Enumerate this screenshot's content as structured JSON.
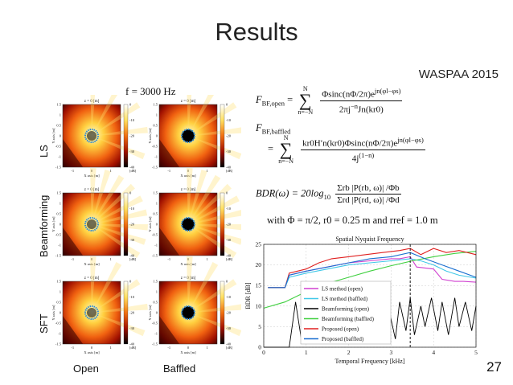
{
  "slide": {
    "title": "Results",
    "venue": "WASPAA 2015",
    "page_number": "27",
    "frequency_label": "f = 3000 Hz"
  },
  "figure_grid": {
    "row_labels": [
      "LS",
      "Beamforming",
      "SFT"
    ],
    "column_labels": [
      "Open",
      "Baffled"
    ],
    "panel_title": "z = 0 [m]",
    "x_label": "X axis [m]",
    "y_label": "Y axis [m]",
    "colorbar_unit": "[dB]",
    "x_ticks": [
      "-1",
      "0",
      "1"
    ],
    "y_ticks": [
      "1.5",
      "1",
      "0.5",
      "0",
      "-0.5",
      "-1",
      "-1.5"
    ],
    "colorbar_ticks": [
      "0",
      "-10",
      "-20",
      "-30",
      "-40"
    ]
  },
  "equations": {
    "open_lhs": "F",
    "open_sub": "BF,open",
    "open_sum_top": "N",
    "open_sum_bottom": "n=−N",
    "open_num": "Φsinc(nΦ/2π)e",
    "open_num_exp": "jn(φl−φs)",
    "open_den": "2πj",
    "open_den_exp": "−n",
    "open_den_tail": "Jn(kr0)",
    "baffled_lhs": "F",
    "baffled_sub": "BF,baffled",
    "baffled_sum_top": "N",
    "baffled_sum_bottom": "n=−N",
    "baffled_num": "kr0H′n(kr0)Φsinc(nΦ/2π)e",
    "baffled_num_exp": "jn(φl−φs)",
    "baffled_den": "4j",
    "baffled_den_exp": "(1−n)",
    "bdr_lhs": "BDR(ω) = 20log",
    "bdr_log_sub": "10",
    "bdr_num": "Σrb |P(rb, ω)| /Φb",
    "bdr_den": "Σrd |P(rd, ω)| /Φd",
    "condition": "with Φ = π/2, r0 = 0.25 m and rref = 1.0 m"
  },
  "chart_data": {
    "type": "line",
    "title": "Spatial Nyquist Frequency",
    "xlabel": "Temporal Frequency [kHz]",
    "ylabel": "BDR [dB]",
    "xlim": [
      0,
      5
    ],
    "ylim": [
      0,
      25
    ],
    "x_ticks": [
      0,
      1,
      2,
      3,
      4,
      5
    ],
    "y_ticks": [
      0,
      5,
      10,
      15,
      20,
      25
    ],
    "grid": true,
    "legend_position": "lower-left",
    "nyquist_line_x": 3.45,
    "series": [
      {
        "name": "LS method (open)",
        "color": "#d040d0",
        "x": [
          0.1,
          0.5,
          0.6,
          1.0,
          1.5,
          2.0,
          2.5,
          3.0,
          3.2,
          3.45,
          3.6,
          4.0,
          4.2,
          4.5,
          4.7,
          5.0
        ],
        "y": [
          14.5,
          14.5,
          17.5,
          18.5,
          19.5,
          20.5,
          21.0,
          21.5,
          21.5,
          22.0,
          19.5,
          19.0,
          16.5,
          16.0,
          16.0,
          15.8
        ]
      },
      {
        "name": "LS method (baffled)",
        "color": "#40c8e8",
        "x": [
          0.1,
          0.5,
          0.6,
          1.0,
          1.5,
          2.0,
          2.5,
          3.0,
          3.45,
          3.7,
          4.0,
          4.3,
          4.6,
          5.0
        ],
        "y": [
          14.5,
          14.5,
          17.0,
          18.0,
          19.0,
          20.0,
          20.5,
          21.0,
          21.5,
          21.0,
          20.0,
          18.5,
          17.5,
          16.8
        ]
      },
      {
        "name": "Beamforming (open)",
        "color": "#000000",
        "x": [
          0.0,
          0.2,
          0.4,
          0.6,
          0.75,
          0.9,
          1.05,
          1.2,
          1.35,
          1.5,
          1.6,
          1.75,
          1.9,
          2.0,
          2.15,
          2.3,
          2.4,
          2.55,
          2.7,
          2.8,
          2.95,
          3.1,
          3.2,
          3.35,
          3.45,
          3.55,
          3.7,
          3.8,
          3.95,
          4.1,
          4.2,
          4.35,
          4.5,
          4.6,
          4.75,
          4.9,
          5.0
        ],
        "y": [
          0,
          0,
          0,
          0,
          11,
          1,
          13,
          2,
          12,
          3,
          12,
          4,
          11,
          3,
          10,
          2,
          12,
          4,
          11,
          3,
          9,
          2,
          11,
          4,
          12,
          3,
          10,
          5,
          12,
          4,
          11,
          3,
          12,
          5,
          11,
          4,
          10
        ]
      },
      {
        "name": "Beamforming (baffled)",
        "color": "#40d040",
        "x": [
          0.0,
          0.5,
          1.0,
          1.5,
          2.0,
          2.5,
          3.0,
          3.5,
          4.0,
          4.5,
          5.0
        ],
        "y": [
          9.5,
          11.0,
          13.5,
          15.5,
          17.0,
          18.5,
          19.8,
          21.0,
          22.0,
          22.8,
          23.3
        ]
      },
      {
        "name": "Proposed (open)",
        "color": "#e02020",
        "x": [
          0.1,
          0.5,
          0.6,
          1.0,
          1.3,
          1.6,
          2.0,
          2.4,
          2.8,
          3.2,
          3.45,
          3.7,
          4.0,
          4.3,
          4.6,
          5.0
        ],
        "y": [
          14.5,
          14.5,
          18.0,
          19.0,
          20.5,
          21.5,
          22.0,
          22.5,
          23.0,
          23.5,
          24.0,
          22.5,
          24.0,
          23.0,
          23.5,
          22.5
        ]
      },
      {
        "name": "Proposed (baffled)",
        "color": "#1a6fd0",
        "x": [
          0.1,
          0.5,
          0.6,
          1.0,
          1.5,
          2.0,
          2.5,
          3.0,
          3.45,
          3.8,
          4.2,
          4.6,
          5.0
        ],
        "y": [
          14.5,
          14.5,
          17.5,
          18.5,
          19.5,
          20.5,
          21.5,
          22.0,
          23.0,
          21.5,
          20.0,
          18.5,
          17.0
        ]
      }
    ]
  }
}
